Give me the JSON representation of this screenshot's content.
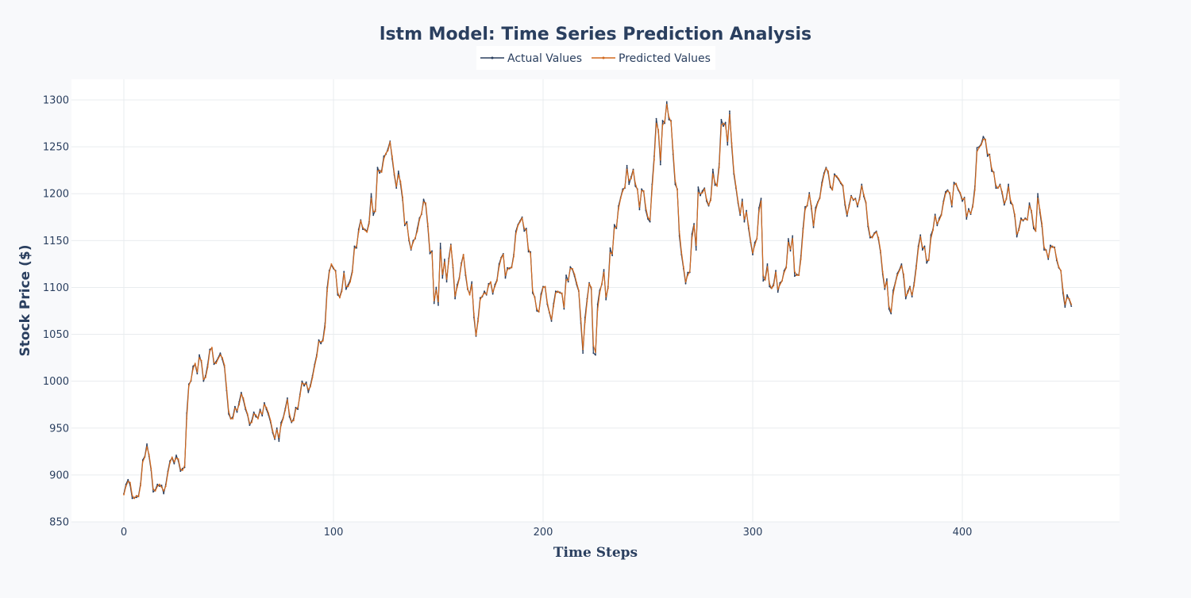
{
  "chart_data": {
    "type": "line",
    "title": "lstm Model: Time Series Prediction Analysis",
    "xlabel": "Time Steps",
    "ylabel": "Stock Price ($)",
    "xlim": [
      -25,
      475
    ],
    "ylim": [
      850,
      1322
    ],
    "x_ticks": [
      0,
      100,
      200,
      300,
      400
    ],
    "y_ticks": [
      850,
      900,
      950,
      1000,
      1050,
      1100,
      1150,
      1200,
      1250,
      1300
    ],
    "grid": true,
    "legend_position": "top-center",
    "colors": {
      "actual": "#2a3f5f",
      "predicted": "#d2691e",
      "plot_background": "#ffffff",
      "page_background": "#f8f9fb"
    },
    "x_start": 0,
    "x_step": 1,
    "series": [
      {
        "name": "Actual Values",
        "values": [
          880,
          890,
          895,
          889,
          875,
          876,
          876,
          878,
          891,
          916,
          920,
          933,
          920,
          905,
          882,
          884,
          890,
          888,
          889,
          880,
          890,
          904,
          915,
          918,
          912,
          921,
          915,
          904,
          907,
          908,
          966,
          997,
          1000,
          1016,
          1018,
          1008,
          1028,
          1020,
          1000,
          1006,
          1018,
          1034,
          1035,
          1018,
          1021,
          1025,
          1030,
          1023,
          1015,
          990,
          965,
          960,
          962,
          973,
          967,
          978,
          988,
          980,
          970,
          964,
          953,
          958,
          967,
          962,
          961,
          970,
          963,
          977,
          970,
          964,
          956,
          945,
          938,
          950,
          936,
          956,
          961,
          971,
          982,
          962,
          956,
          960,
          972,
          970,
          986,
          1000,
          995,
          999,
          988,
          996,
          1006,
          1018,
          1028,
          1044,
          1040,
          1045,
          1062,
          1100,
          1118,
          1124,
          1120,
          1118,
          1092,
          1090,
          1098,
          1117,
          1098,
          1103,
          1108,
          1118,
          1144,
          1142,
          1162,
          1172,
          1162,
          1162,
          1160,
          1170,
          1200,
          1177,
          1183,
          1228,
          1222,
          1225,
          1240,
          1242,
          1248,
          1256,
          1237,
          1220,
          1206,
          1224,
          1210,
          1193,
          1166,
          1170,
          1150,
          1140,
          1150,
          1152,
          1163,
          1174,
          1178,
          1194,
          1188,
          1165,
          1136,
          1139,
          1083,
          1100,
          1081,
          1147,
          1110,
          1130,
          1106,
          1131,
          1146,
          1121,
          1088,
          1103,
          1110,
          1126,
          1135,
          1113,
          1098,
          1093,
          1106,
          1068,
          1048,
          1067,
          1089,
          1090,
          1096,
          1092,
          1104,
          1105,
          1093,
          1103,
          1108,
          1125,
          1132,
          1136,
          1110,
          1121,
          1120,
          1122,
          1135,
          1160,
          1167,
          1171,
          1175,
          1160,
          1163,
          1138,
          1138,
          1094,
          1090,
          1075,
          1074,
          1093,
          1101,
          1100,
          1082,
          1073,
          1064,
          1083,
          1096,
          1095,
          1095,
          1093,
          1077,
          1113,
          1106,
          1122,
          1119,
          1112,
          1103,
          1096,
          1062,
          1030,
          1068,
          1088,
          1105,
          1098,
          1030,
          1028,
          1082,
          1097,
          1103,
          1119,
          1087,
          1101,
          1142,
          1134,
          1167,
          1163,
          1187,
          1196,
          1205,
          1206,
          1230,
          1210,
          1218,
          1226,
          1208,
          1205,
          1183,
          1205,
          1202,
          1182,
          1173,
          1170,
          1210,
          1240,
          1280,
          1266,
          1231,
          1278,
          1275,
          1298,
          1279,
          1278,
          1242,
          1210,
          1205,
          1155,
          1135,
          1120,
          1104,
          1116,
          1116,
          1157,
          1168,
          1140,
          1207,
          1198,
          1203,
          1206,
          1192,
          1187,
          1195,
          1226,
          1209,
          1210,
          1232,
          1279,
          1272,
          1276,
          1252,
          1288,
          1250,
          1221,
          1206,
          1190,
          1177,
          1194,
          1170,
          1182,
          1163,
          1148,
          1135,
          1148,
          1152,
          1185,
          1195,
          1107,
          1110,
          1125,
          1101,
          1099,
          1104,
          1118,
          1095,
          1105,
          1107,
          1118,
          1122,
          1152,
          1139,
          1155,
          1112,
          1114,
          1113,
          1134,
          1163,
          1186,
          1187,
          1201,
          1184,
          1164,
          1185,
          1191,
          1196,
          1212,
          1222,
          1228,
          1222,
          1207,
          1204,
          1221,
          1218,
          1215,
          1211,
          1208,
          1188,
          1176,
          1188,
          1198,
          1193,
          1195,
          1186,
          1196,
          1210,
          1197,
          1190,
          1165,
          1153,
          1154,
          1158,
          1160,
          1151,
          1137,
          1114,
          1098,
          1109,
          1077,
          1072,
          1097,
          1105,
          1115,
          1119,
          1125,
          1111,
          1088,
          1096,
          1101,
          1090,
          1105,
          1123,
          1144,
          1156,
          1140,
          1144,
          1126,
          1130,
          1156,
          1162,
          1178,
          1166,
          1174,
          1178,
          1192,
          1202,
          1204,
          1200,
          1186,
          1212,
          1210,
          1204,
          1200,
          1192,
          1196,
          1173,
          1184,
          1178,
          1188,
          1208,
          1249,
          1250,
          1253,
          1261,
          1257,
          1240,
          1242,
          1224,
          1223,
          1206,
          1206,
          1210,
          1200,
          1188,
          1195,
          1210,
          1190,
          1188,
          1176,
          1154,
          1163,
          1174,
          1171,
          1174,
          1172,
          1190,
          1180,
          1163,
          1160,
          1200,
          1180,
          1165,
          1140,
          1140,
          1130,
          1145,
          1143,
          1143,
          1129,
          1121,
          1118,
          1094,
          1079,
          1092,
          1087,
          1080
        ]
      },
      {
        "name": "Predicted Values",
        "values": [
          879,
          888,
          893,
          892,
          878,
          875,
          878,
          877,
          889,
          914,
          919,
          930,
          922,
          907,
          885,
          883,
          888,
          890,
          887,
          883,
          888,
          902,
          913,
          919,
          914,
          918,
          917,
          906,
          905,
          910,
          960,
          995,
          1001,
          1013,
          1019,
          1010,
          1025,
          1022,
          1002,
          1004,
          1015,
          1032,
          1036,
          1020,
          1019,
          1024,
          1028,
          1025,
          1017,
          993,
          968,
          960,
          960,
          971,
          969,
          975,
          986,
          982,
          972,
          965,
          955,
          956,
          965,
          964,
          960,
          968,
          965,
          975,
          972,
          966,
          958,
          947,
          939,
          948,
          940,
          953,
          960,
          969,
          980,
          965,
          957,
          958,
          970,
          972,
          984,
          998,
          997,
          997,
          991,
          994,
          1004,
          1016,
          1026,
          1042,
          1042,
          1043,
          1058,
          1096,
          1116,
          1125,
          1121,
          1117,
          1095,
          1089,
          1096,
          1115,
          1101,
          1101,
          1106,
          1116,
          1141,
          1144,
          1159,
          1171,
          1164,
          1161,
          1159,
          1168,
          1195,
          1181,
          1181,
          1224,
          1225,
          1223,
          1237,
          1243,
          1246,
          1255,
          1240,
          1222,
          1208,
          1220,
          1213,
          1196,
          1168,
          1168,
          1152,
          1141,
          1148,
          1153,
          1160,
          1172,
          1179,
          1191,
          1190,
          1168,
          1139,
          1137,
          1086,
          1097,
          1085,
          1140,
          1114,
          1127,
          1109,
          1128,
          1145,
          1124,
          1091,
          1100,
          1109,
          1124,
          1135,
          1116,
          1099,
          1092,
          1103,
          1072,
          1049,
          1064,
          1087,
          1091,
          1094,
          1093,
          1102,
          1106,
          1095,
          1101,
          1107,
          1122,
          1131,
          1135,
          1113,
          1119,
          1121,
          1121,
          1133,
          1157,
          1166,
          1170,
          1174,
          1163,
          1161,
          1141,
          1136,
          1097,
          1089,
          1077,
          1074,
          1090,
          1100,
          1101,
          1084,
          1074,
          1066,
          1080,
          1094,
          1096,
          1094,
          1094,
          1079,
          1108,
          1108,
          1120,
          1120,
          1114,
          1105,
          1097,
          1067,
          1034,
          1063,
          1085,
          1104,
          1100,
          1038,
          1031,
          1076,
          1094,
          1104,
          1116,
          1090,
          1099,
          1137,
          1136,
          1163,
          1165,
          1184,
          1195,
          1203,
          1207,
          1226,
          1214,
          1216,
          1225,
          1211,
          1204,
          1186,
          1203,
          1203,
          1185,
          1175,
          1172,
          1205,
          1236,
          1275,
          1268,
          1236,
          1273,
          1277,
          1295,
          1282,
          1277,
          1246,
          1214,
          1204,
          1160,
          1138,
          1122,
          1106,
          1113,
          1117,
          1152,
          1166,
          1145,
          1201,
          1200,
          1201,
          1205,
          1194,
          1188,
          1193,
          1221,
          1212,
          1208,
          1228,
          1273,
          1275,
          1273,
          1256,
          1284,
          1254,
          1224,
          1208,
          1192,
          1179,
          1191,
          1173,
          1180,
          1166,
          1150,
          1137,
          1145,
          1152,
          1181,
          1192,
          1113,
          1108,
          1122,
          1104,
          1099,
          1102,
          1116,
          1098,
          1103,
          1107,
          1116,
          1121,
          1148,
          1141,
          1152,
          1117,
          1113,
          1113,
          1130,
          1159,
          1183,
          1188,
          1199,
          1187,
          1166,
          1182,
          1190,
          1195,
          1209,
          1220,
          1227,
          1224,
          1209,
          1204,
          1219,
          1219,
          1216,
          1212,
          1209,
          1191,
          1178,
          1186,
          1197,
          1194,
          1194,
          1188,
          1194,
          1208,
          1199,
          1191,
          1168,
          1155,
          1153,
          1157,
          1159,
          1153,
          1139,
          1117,
          1100,
          1106,
          1080,
          1074,
          1093,
          1104,
          1113,
          1118,
          1123,
          1114,
          1091,
          1094,
          1100,
          1092,
          1102,
          1120,
          1141,
          1154,
          1143,
          1142,
          1129,
          1129,
          1152,
          1161,
          1176,
          1168,
          1172,
          1177,
          1190,
          1200,
          1203,
          1201,
          1188,
          1209,
          1211,
          1205,
          1201,
          1194,
          1195,
          1176,
          1182,
          1179,
          1186,
          1204,
          1245,
          1249,
          1252,
          1258,
          1258,
          1243,
          1241,
          1227,
          1222,
          1209,
          1206,
          1209,
          1202,
          1190,
          1194,
          1207,
          1193,
          1188,
          1178,
          1157,
          1161,
          1172,
          1172,
          1173,
          1172,
          1187,
          1182,
          1166,
          1160,
          1195,
          1183,
          1168,
          1143,
          1139,
          1132,
          1142,
          1144,
          1142,
          1131,
          1122,
          1118,
          1098,
          1082,
          1089,
          1088,
          1082
        ]
      }
    ]
  }
}
